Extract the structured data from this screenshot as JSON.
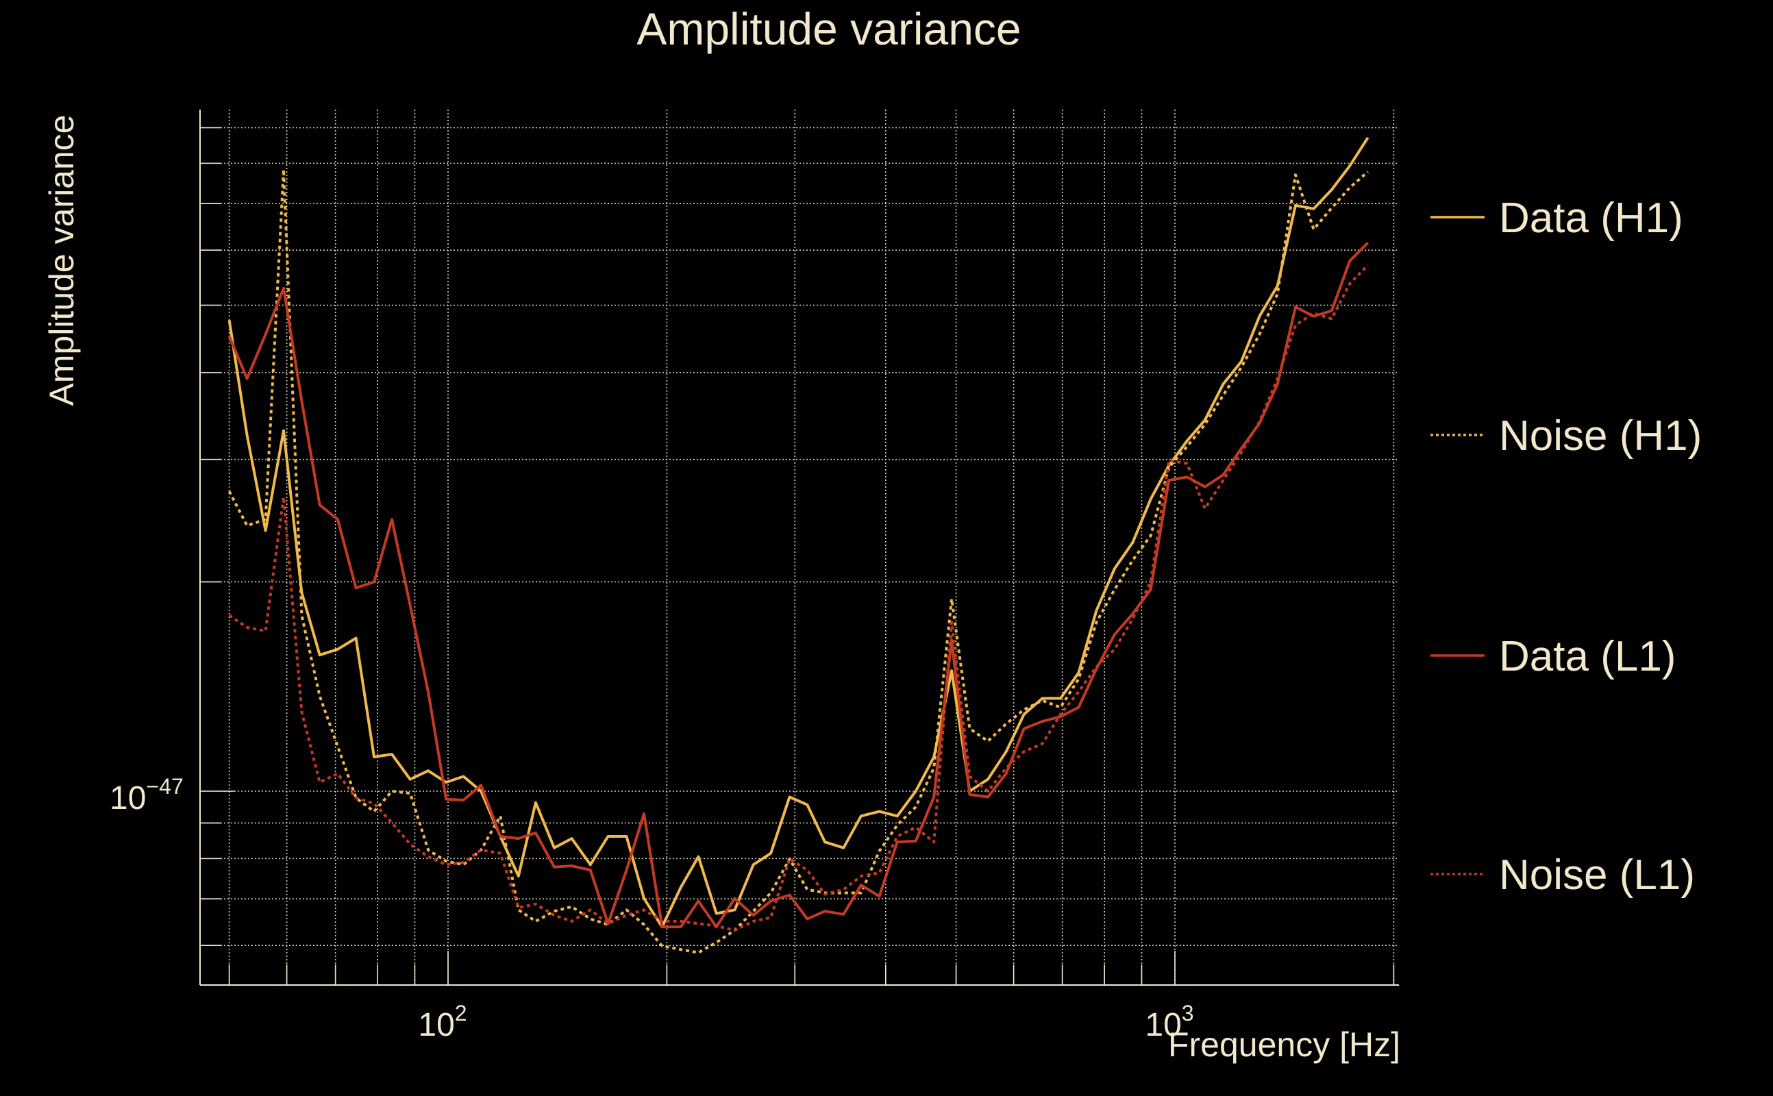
{
  "chart_data": {
    "type": "line",
    "title": "Amplitude variance",
    "xlabel": "Frequency [Hz]",
    "ylabel": "Amplitude variance",
    "xscale": "log",
    "yscale": "log",
    "y_units_multiplier": "1e-47",
    "xlim": [
      45.6,
      2030
    ],
    "ylim": [
      0.527,
      9.56
    ],
    "grid": true,
    "legend_position": "right",
    "x_ticks": [
      {
        "value": 100,
        "base": "10",
        "exp": "2"
      },
      {
        "value": 1000,
        "base": "10",
        "exp": "3"
      }
    ],
    "y_ticks": [
      {
        "value": 1,
        "base": "10",
        "exp": "−47"
      }
    ],
    "x": [
      50.0,
      52.9,
      56.1,
      59.4,
      62.9,
      66.6,
      70.5,
      74.7,
      79.1,
      83.7,
      88.7,
      93.9,
      99.4,
      105,
      111,
      118,
      125,
      132,
      140,
      148,
      157,
      166,
      176,
      186,
      197,
      209,
      221,
      234,
      248,
      263,
      278,
      295,
      312,
      330,
      350,
      370,
      392,
      415,
      440,
      466,
      493,
      522,
      553,
      586,
      620,
      657,
      696,
      737,
      780,
      826,
      875,
      926,
      981,
      1039,
      1100,
      1165,
      1234,
      1307,
      1384,
      1465,
      1552,
      1643,
      1740,
      1843
    ],
    "series": [
      {
        "name": "Data (H1)",
        "color": "#efb94c",
        "style": "solid",
        "values": [
          4.76,
          3.25,
          2.37,
          3.3,
          1.93,
          1.57,
          1.6,
          1.66,
          1.12,
          1.13,
          1.04,
          1.07,
          1.03,
          1.05,
          1.0,
          0.861,
          0.755,
          0.963,
          0.829,
          0.855,
          0.784,
          0.861,
          0.861,
          0.701,
          0.638,
          0.727,
          0.805,
          0.667,
          0.675,
          0.784,
          0.814,
          0.981,
          0.956,
          0.845,
          0.829,
          0.921,
          0.935,
          0.921,
          1.0,
          1.12,
          1.49,
          1.0,
          1.04,
          1.14,
          1.29,
          1.36,
          1.36,
          1.48,
          1.82,
          2.09,
          2.28,
          2.63,
          2.94,
          3.19,
          3.42,
          3.85,
          4.15,
          4.82,
          5.33,
          6.96,
          6.88,
          7.33,
          7.93,
          8.71
        ]
      },
      {
        "name": "Noise (H1)",
        "color": "#efb94c",
        "style": "dotted",
        "values": [
          2.7,
          2.41,
          2.46,
          7.84,
          1.79,
          1.37,
          1.16,
          0.978,
          0.935,
          1.0,
          0.993,
          0.823,
          0.793,
          0.784,
          0.823,
          0.921,
          0.675,
          0.65,
          0.672,
          0.682,
          0.655,
          0.643,
          0.675,
          0.643,
          0.599,
          0.592,
          0.586,
          0.606,
          0.631,
          0.672,
          0.714,
          0.799,
          0.722,
          0.714,
          0.714,
          0.714,
          0.82,
          0.894,
          0.949,
          1.08,
          1.89,
          1.23,
          1.18,
          1.25,
          1.31,
          1.35,
          1.32,
          1.45,
          1.75,
          1.95,
          2.15,
          2.33,
          2.92,
          3.13,
          3.37,
          3.71,
          4.07,
          4.54,
          5.19,
          7.7,
          6.43,
          6.9,
          7.38,
          7.78
        ]
      },
      {
        "name": "Data (L1)",
        "color": "#c33a24",
        "style": "solid",
        "values": [
          4.51,
          3.92,
          4.54,
          5.29,
          3.64,
          2.58,
          2.46,
          1.96,
          2.0,
          2.46,
          1.85,
          1.39,
          0.974,
          0.971,
          1.02,
          0.861,
          0.855,
          0.871,
          0.778,
          0.781,
          0.77,
          0.645,
          0.77,
          0.928,
          0.638,
          0.638,
          0.695,
          0.638,
          0.701,
          0.663,
          0.695,
          0.709,
          0.655,
          0.672,
          0.665,
          0.733,
          0.706,
          0.845,
          0.848,
          0.981,
          1.65,
          0.989,
          0.981,
          1.06,
          1.23,
          1.26,
          1.28,
          1.32,
          1.5,
          1.68,
          1.8,
          1.95,
          2.8,
          2.83,
          2.74,
          2.85,
          3.11,
          3.38,
          3.85,
          4.97,
          4.82,
          4.91,
          5.79,
          6.15
        ]
      },
      {
        "name": "Noise (L1)",
        "color": "#c33a24",
        "style": "dotted",
        "values": [
          1.79,
          1.72,
          1.7,
          2.65,
          1.3,
          1.03,
          1.06,
          0.978,
          0.96,
          0.901,
          0.839,
          0.805,
          0.784,
          0.79,
          0.823,
          0.814,
          0.68,
          0.688,
          0.663,
          0.65,
          0.675,
          0.645,
          0.663,
          0.675,
          0.65,
          0.65,
          0.645,
          0.64,
          0.631,
          0.65,
          0.658,
          0.799,
          0.77,
          0.711,
          0.722,
          0.755,
          0.763,
          0.861,
          0.887,
          0.845,
          1.75,
          1.05,
          1.0,
          1.08,
          1.14,
          1.17,
          1.29,
          1.39,
          1.51,
          1.6,
          1.77,
          2.0,
          2.99,
          2.96,
          2.55,
          2.8,
          3.07,
          3.4,
          3.92,
          4.68,
          4.87,
          4.78,
          5.37,
          5.71
        ]
      }
    ]
  }
}
